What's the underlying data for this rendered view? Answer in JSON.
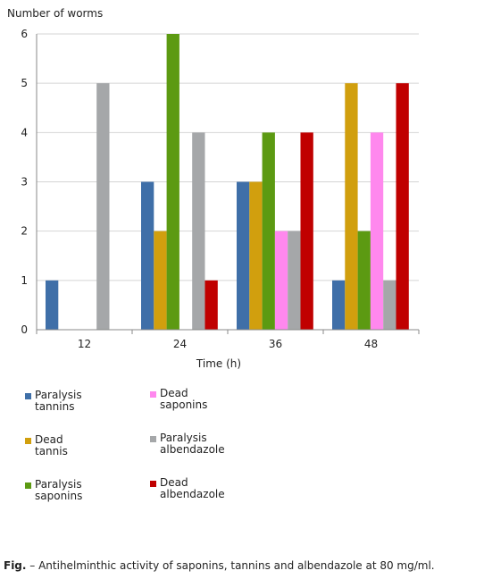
{
  "chart_data": {
    "type": "bar",
    "ylabel": "Number of worms",
    "xlabel": "Time (h)",
    "categories": [
      "12",
      "24",
      "36",
      "48"
    ],
    "ylim": [
      0,
      6
    ],
    "yticks": [
      0,
      1,
      2,
      3,
      4,
      5,
      6
    ],
    "grid": true,
    "legend_position": "bottom",
    "series": [
      {
        "name": "Paralysis tannins",
        "label": "Paralysis\ntannins",
        "color": "#3f6fa8",
        "values": [
          1,
          3,
          3,
          1
        ]
      },
      {
        "name": "Dead tannis",
        "label": "Dead\ntannis",
        "color": "#d19f0e",
        "values": [
          0,
          2,
          3,
          5
        ]
      },
      {
        "name": "Paralysis saponins",
        "label": "Paralysis\nsaponins",
        "color": "#5c9a12",
        "values": [
          0,
          6,
          4,
          2
        ]
      },
      {
        "name": "Dead saponins",
        "label": "Dead\nsaponins",
        "color": "#ff88ee",
        "values": [
          0,
          0,
          2,
          4
        ]
      },
      {
        "name": "Paralysis albendazole",
        "label": "Paralysis\nalbendazole",
        "color": "#a5a7a9",
        "values": [
          5,
          4,
          2,
          1
        ]
      },
      {
        "name": "Dead albendazole",
        "label": "Dead\nalbendazole",
        "color": "#c00000",
        "values": [
          0,
          1,
          4,
          5
        ]
      }
    ]
  },
  "caption": {
    "prefix": "Fig.",
    "text": " – Antihelminthic activity of saponins, tannins and albendazole at 80 mg/ml."
  }
}
